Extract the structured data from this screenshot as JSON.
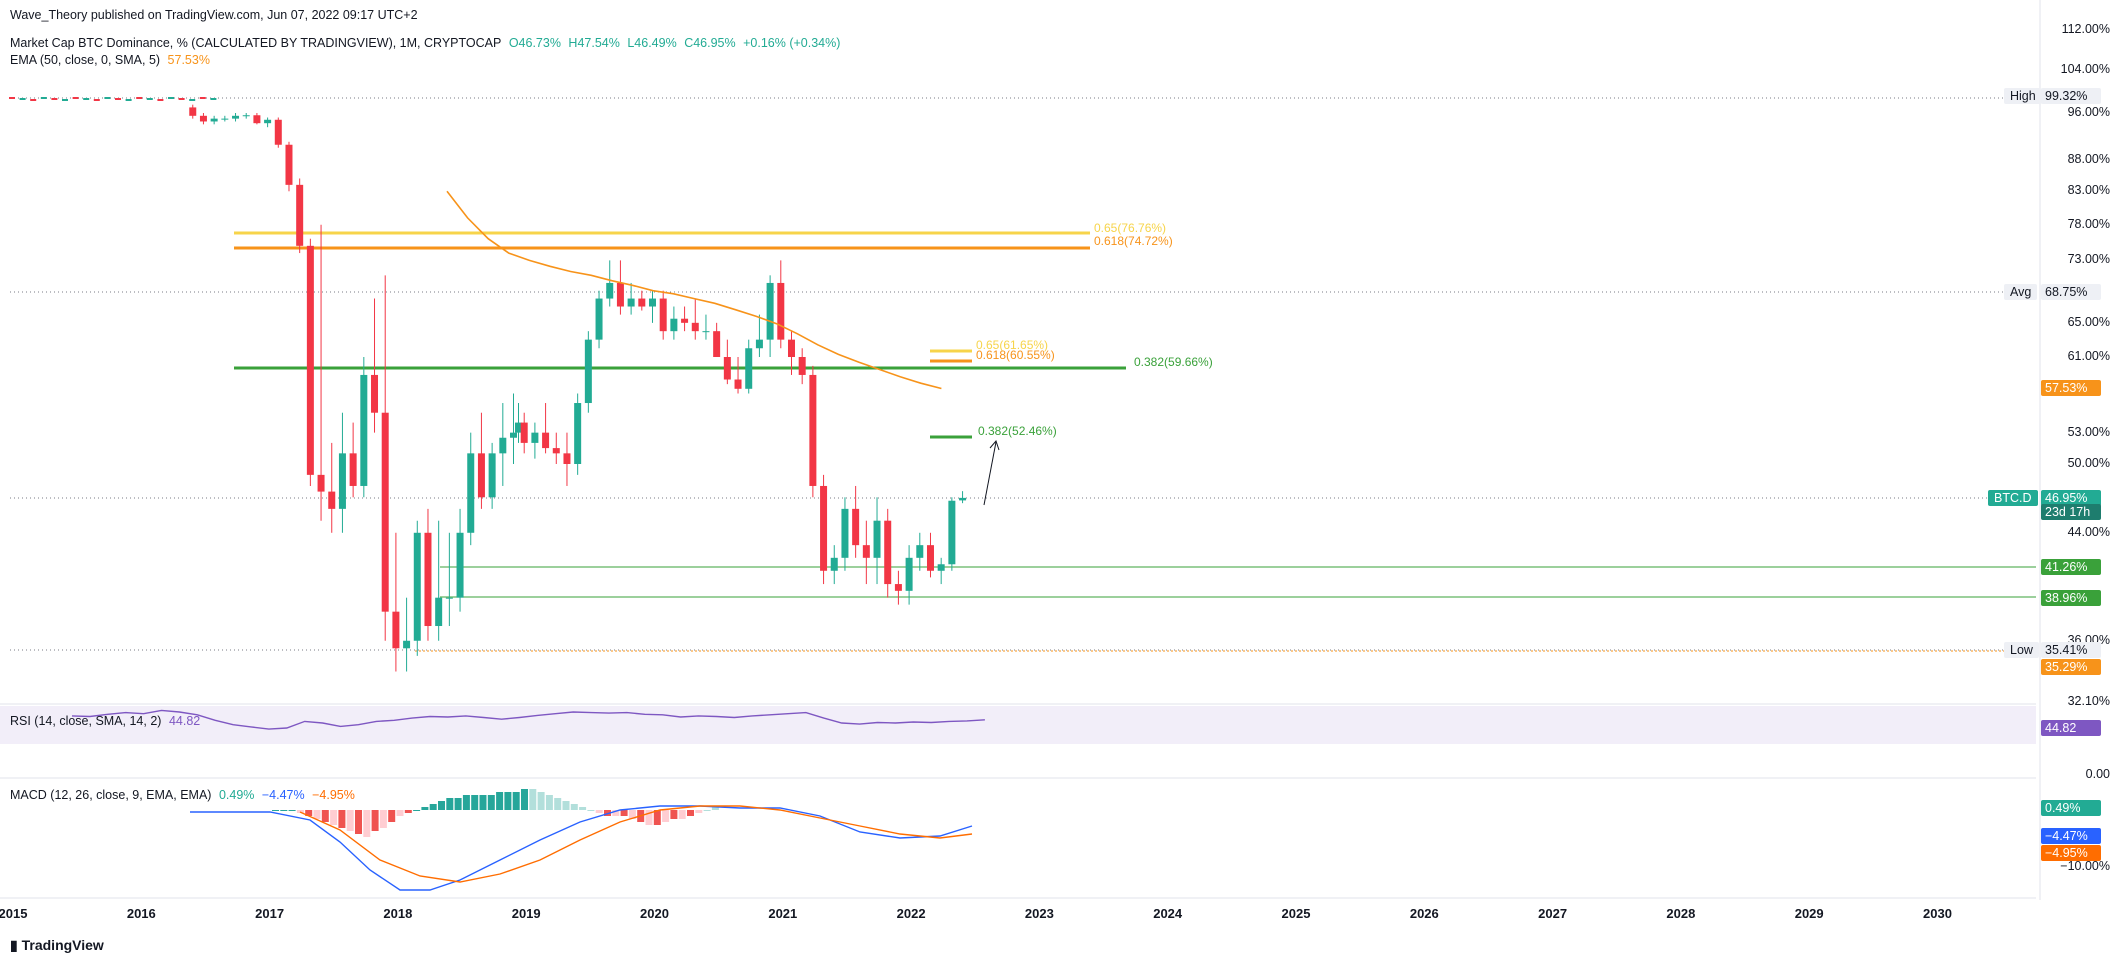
{
  "header": {
    "published": "Wave_Theory published on TradingView.com, Jun 07, 2022 09:17 UTC+2",
    "symbol": "Market Cap BTC Dominance, % (CALCULATED BY TRADINGVIEW), 1M, CRYPTOCAP",
    "ohlc": {
      "o": "O46.73%",
      "h": "H47.54%",
      "l": "L46.49%",
      "c": "C46.95%",
      "chg": "+0.16% (+0.34%)"
    },
    "ema_label": "EMA (50, close, 0, SMA, 5)",
    "ema_value": "57.53%",
    "rsi_label": "RSI (14, close, SMA, 14, 2)",
    "rsi_value": "44.82",
    "macd_label": "MACD (12, 26, close, 9, EMA, EMA)",
    "macd_values": {
      "hist": "0.49%",
      "macd": "−4.47%",
      "signal": "−4.95%"
    }
  },
  "chart_data": {
    "type": "candlestick",
    "price_axis_ticks": [
      "112.00%",
      "104.00%",
      "96.00%",
      "88.00%",
      "83.00%",
      "78.00%",
      "73.00%",
      "65.00%",
      "61.00%",
      "53.00%",
      "50.00%",
      "44.00%",
      "36.00%",
      "32.10%"
    ],
    "x_ticks": [
      "2015",
      "2016",
      "2017",
      "2018",
      "2019",
      "2020",
      "2021",
      "2022",
      "2023",
      "2024",
      "2025",
      "2026",
      "2027",
      "2028",
      "2029",
      "2030"
    ],
    "candles": [
      [
        "2016-06",
        97,
        97.5,
        95,
        95.5
      ],
      [
        "2016-07",
        95.5,
        96,
        94,
        94.5
      ],
      [
        "2016-08",
        94.5,
        95.5,
        94,
        95
      ],
      [
        "2016-09",
        95,
        95.5,
        94.5,
        95
      ],
      [
        "2016-10",
        95,
        96,
        94.5,
        95.5
      ],
      [
        "2016-11",
        95.5,
        96,
        95,
        95.6
      ],
      [
        "2016-12",
        95.6,
        96,
        94,
        94.2
      ],
      [
        "2017-01",
        94.2,
        95.2,
        93.5,
        94.8
      ],
      [
        "2017-02",
        94.8,
        95.2,
        90,
        90.5
      ],
      [
        "2017-03",
        90.5,
        91,
        83,
        84
      ],
      [
        "2017-04",
        84,
        85,
        74,
        75
      ],
      [
        "2017-05",
        75,
        76,
        48,
        49
      ],
      [
        "2017-06",
        49,
        78,
        45,
        47.5
      ],
      [
        "2017-07",
        47.5,
        52,
        44,
        46
      ],
      [
        "2017-08",
        46,
        55,
        44,
        51
      ],
      [
        "2017-09",
        51,
        54,
        47,
        48
      ],
      [
        "2017-10",
        48,
        61,
        47,
        59
      ],
      [
        "2017-11",
        59,
        68,
        53,
        55
      ],
      [
        "2017-12",
        55,
        71,
        36,
        38
      ],
      [
        "2018-01",
        38,
        44,
        34,
        35.5
      ],
      [
        "2018-02",
        35.5,
        39,
        34,
        36
      ],
      [
        "2018-03",
        36,
        45,
        35,
        44
      ],
      [
        "2018-04",
        44,
        46,
        36,
        37
      ],
      [
        "2018-05",
        37,
        45,
        36,
        39
      ],
      [
        "2018-06",
        39,
        44,
        37,
        39
      ],
      [
        "2018-07",
        39,
        46,
        38,
        44
      ],
      [
        "2018-08",
        44,
        53,
        43,
        51
      ],
      [
        "2018-09",
        51,
        55,
        46,
        47
      ],
      [
        "2018-10",
        47,
        52,
        46,
        51
      ],
      [
        "2018-11",
        51,
        56,
        48,
        52.5
      ],
      [
        "2018-12",
        52.5,
        57,
        50,
        53
      ],
      [
        "2018-12b",
        53,
        56,
        52,
        54
      ],
      [
        "2019-01",
        54,
        55,
        51,
        52
      ],
      [
        "2019-02",
        52,
        54,
        50.5,
        53
      ],
      [
        "2019-03",
        53,
        56,
        51,
        51.5
      ],
      [
        "2019-04",
        51.5,
        53,
        50,
        51
      ],
      [
        "2019-05",
        51,
        53,
        48,
        50
      ],
      [
        "2019-06",
        50,
        57,
        49,
        56
      ],
      [
        "2019-07",
        56,
        64,
        55,
        63
      ],
      [
        "2019-08",
        63,
        69,
        62,
        68
      ],
      [
        "2019-09",
        68,
        73,
        67,
        70
      ],
      [
        "2019-10",
        70,
        73,
        66,
        67
      ],
      [
        "2019-11",
        67,
        70,
        66,
        68
      ],
      [
        "2019-12",
        68,
        69,
        66.5,
        67
      ],
      [
        "2020-01",
        67,
        69,
        65,
        68
      ],
      [
        "2020-02",
        68,
        69,
        63,
        64
      ],
      [
        "2020-03",
        64,
        67,
        63,
        65.5
      ],
      [
        "2020-04",
        65.5,
        67,
        64,
        65
      ],
      [
        "2020-05",
        65,
        68,
        63,
        64
      ],
      [
        "2020-06",
        64,
        66,
        63,
        64
      ],
      [
        "2020-07",
        64,
        65,
        61,
        61
      ],
      [
        "2020-08",
        61,
        63,
        58,
        58.5
      ],
      [
        "2020-09",
        58.5,
        61,
        57,
        57.5
      ],
      [
        "2020-10",
        57.5,
        63,
        57,
        62
      ],
      [
        "2020-11",
        62,
        66,
        61,
        63
      ],
      [
        "2020-12",
        63,
        71,
        61,
        70
      ],
      [
        "2021-01",
        70,
        73,
        62,
        63
      ],
      [
        "2021-02",
        63,
        64,
        59,
        61
      ],
      [
        "2021-03",
        61,
        62,
        58,
        59
      ],
      [
        "2021-04",
        59,
        60,
        47,
        48
      ],
      [
        "2021-05",
        48,
        49,
        40,
        41
      ],
      [
        "2021-06",
        41,
        43,
        40,
        42
      ],
      [
        "2021-07",
        42,
        47,
        41,
        46
      ],
      [
        "2021-08",
        46,
        48,
        42,
        43
      ],
      [
        "2021-09",
        43,
        45,
        40,
        42
      ],
      [
        "2021-10",
        42,
        47,
        40,
        45
      ],
      [
        "2021-11",
        45,
        46,
        39,
        40
      ],
      [
        "2021-12",
        40,
        41,
        38.5,
        39.5
      ],
      [
        "2022-01",
        39.5,
        43,
        38.5,
        42
      ],
      [
        "2022-02",
        42,
        44,
        41,
        43
      ],
      [
        "2022-03",
        43,
        44,
        40.5,
        41
      ],
      [
        "2022-04",
        41,
        42,
        40,
        41.5
      ],
      [
        "2022-05",
        41.5,
        47,
        41,
        46.7
      ],
      [
        "2022-06",
        46.73,
        47.54,
        46.49,
        46.95
      ]
    ],
    "ema_50": [
      83,
      79,
      76,
      74,
      73,
      72.2,
      71.5,
      71,
      70.3,
      69.7,
      69,
      68.6,
      68,
      67.4,
      66.6,
      65.8,
      64.9,
      63.7,
      62.4,
      61.3,
      60.4,
      59.6,
      58.8,
      58.1,
      57.53
    ],
    "levels": [
      {
        "label": "High",
        "value": "99.32%"
      },
      {
        "label": "Avg",
        "value": "68.75%"
      },
      {
        "label": "BTC.D",
        "value": "46.95%",
        "sub": "23d 17h"
      },
      {
        "label": "",
        "value": "41.26%"
      },
      {
        "label": "",
        "value": "38.96%"
      },
      {
        "label": "Low",
        "value": "35.41%"
      },
      {
        "label": "",
        "value": "35.29%"
      }
    ],
    "ema_badge": "57.53%",
    "fib_lines": [
      {
        "label": "0.65(76.76%)",
        "color": "#f7d44a",
        "value": 76.76
      },
      {
        "label": "0.618(74.72%)",
        "color": "#f7931a",
        "value": 74.72
      },
      {
        "label": "0.382(59.66%)",
        "color": "#3aa13a",
        "value": 59.66
      },
      {
        "label": "0.65(61.65%)",
        "color": "#f7d44a",
        "value": 61.65
      },
      {
        "label": "0.618(60.55%)",
        "color": "#f7931a",
        "value": 60.55
      },
      {
        "label": "0.382(52.46%)",
        "color": "#3aa13a",
        "value": 52.46
      }
    ],
    "rsi_axis": "0.00",
    "rsi_badge": "44.82",
    "macd_axis": "−10.00%",
    "macd_badges": {
      "hist": "0.49%",
      "macd": "−4.47%",
      "signal": "−4.95%"
    }
  },
  "footer": {
    "logo": "TradingView"
  },
  "colors": {
    "up": "#22ab94",
    "down": "#f23645",
    "ema": "#f7931a",
    "rsi": "#7e57c2",
    "macd": "#2962ff",
    "signal": "#ff6d00"
  }
}
